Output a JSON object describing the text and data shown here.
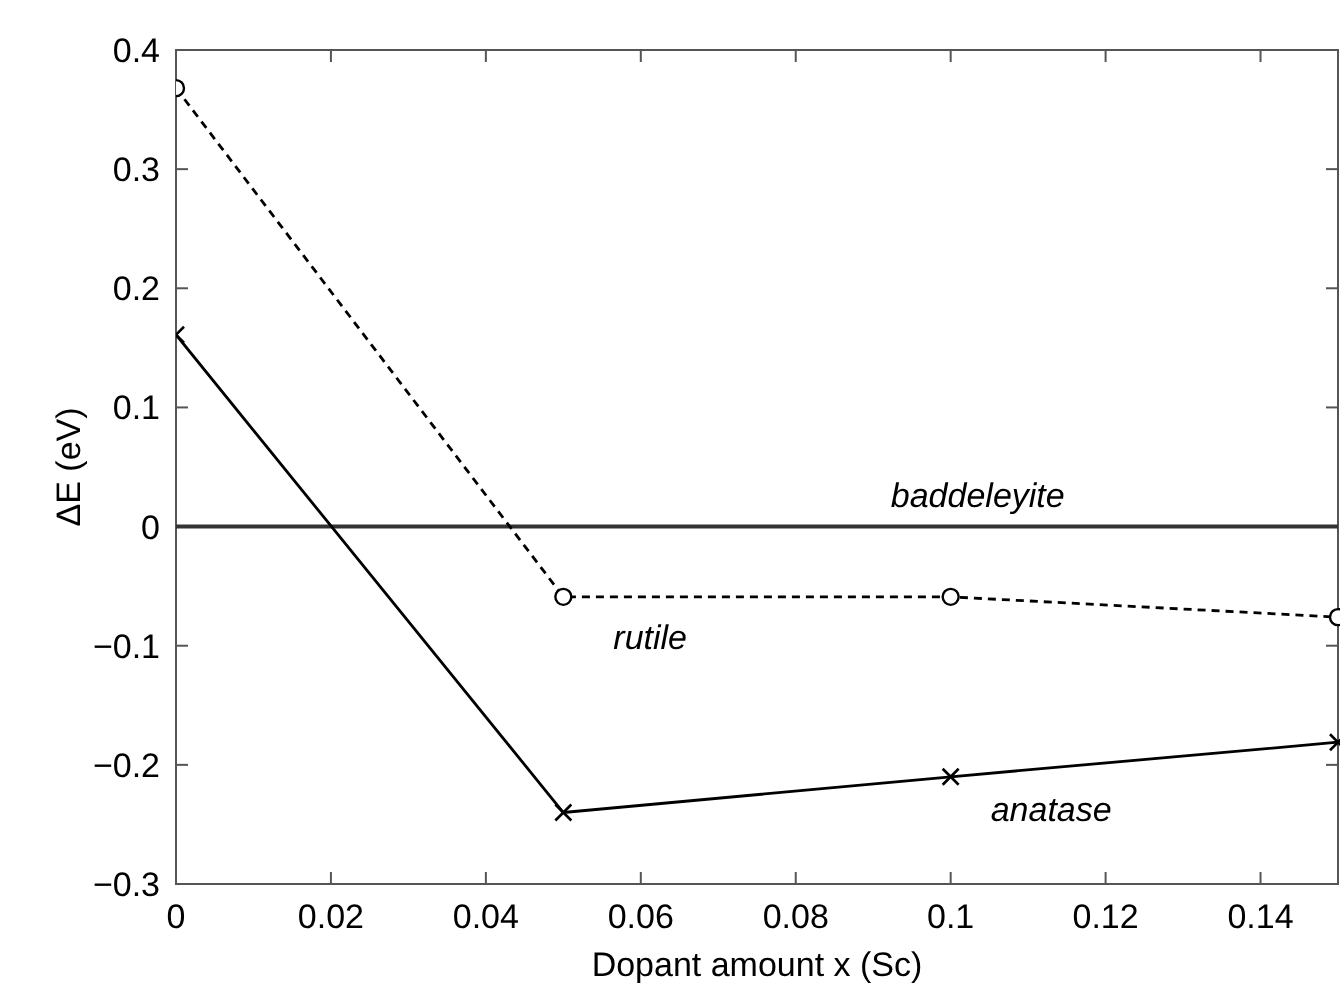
{
  "chart_data": {
    "type": "line",
    "xlabel": "Dopant amount x (Sc)",
    "ylabel": "ΔE (eV)",
    "xlim": [
      0,
      0.15
    ],
    "xticks": [
      0,
      0.02,
      0.04,
      0.06,
      0.08,
      0.1,
      0.12,
      0.14
    ],
    "ylim": [
      -0.3,
      0.4
    ],
    "yticks": [
      -0.3,
      -0.2,
      -0.1,
      0,
      0.1,
      0.2,
      0.3,
      0.4
    ],
    "x": [
      0,
      0.05,
      0.1,
      0.15
    ],
    "series": [
      {
        "name": "rutile",
        "color": "#000000",
        "values": [
          0.368,
          -0.059,
          -0.059,
          -0.076
        ],
        "marker": "circle",
        "line_style": "dashed"
      },
      {
        "name": "anatase",
        "color": "#000000",
        "values": [
          0.161,
          -0.24,
          -0.21,
          -0.181
        ],
        "marker": "cross",
        "line_style": "solid"
      }
    ],
    "ref_lines": [
      {
        "axis": "y",
        "value": 0,
        "label": "baddeleyite",
        "color": "#333333",
        "line_style": "solid"
      }
    ],
    "grid": false
  }
}
